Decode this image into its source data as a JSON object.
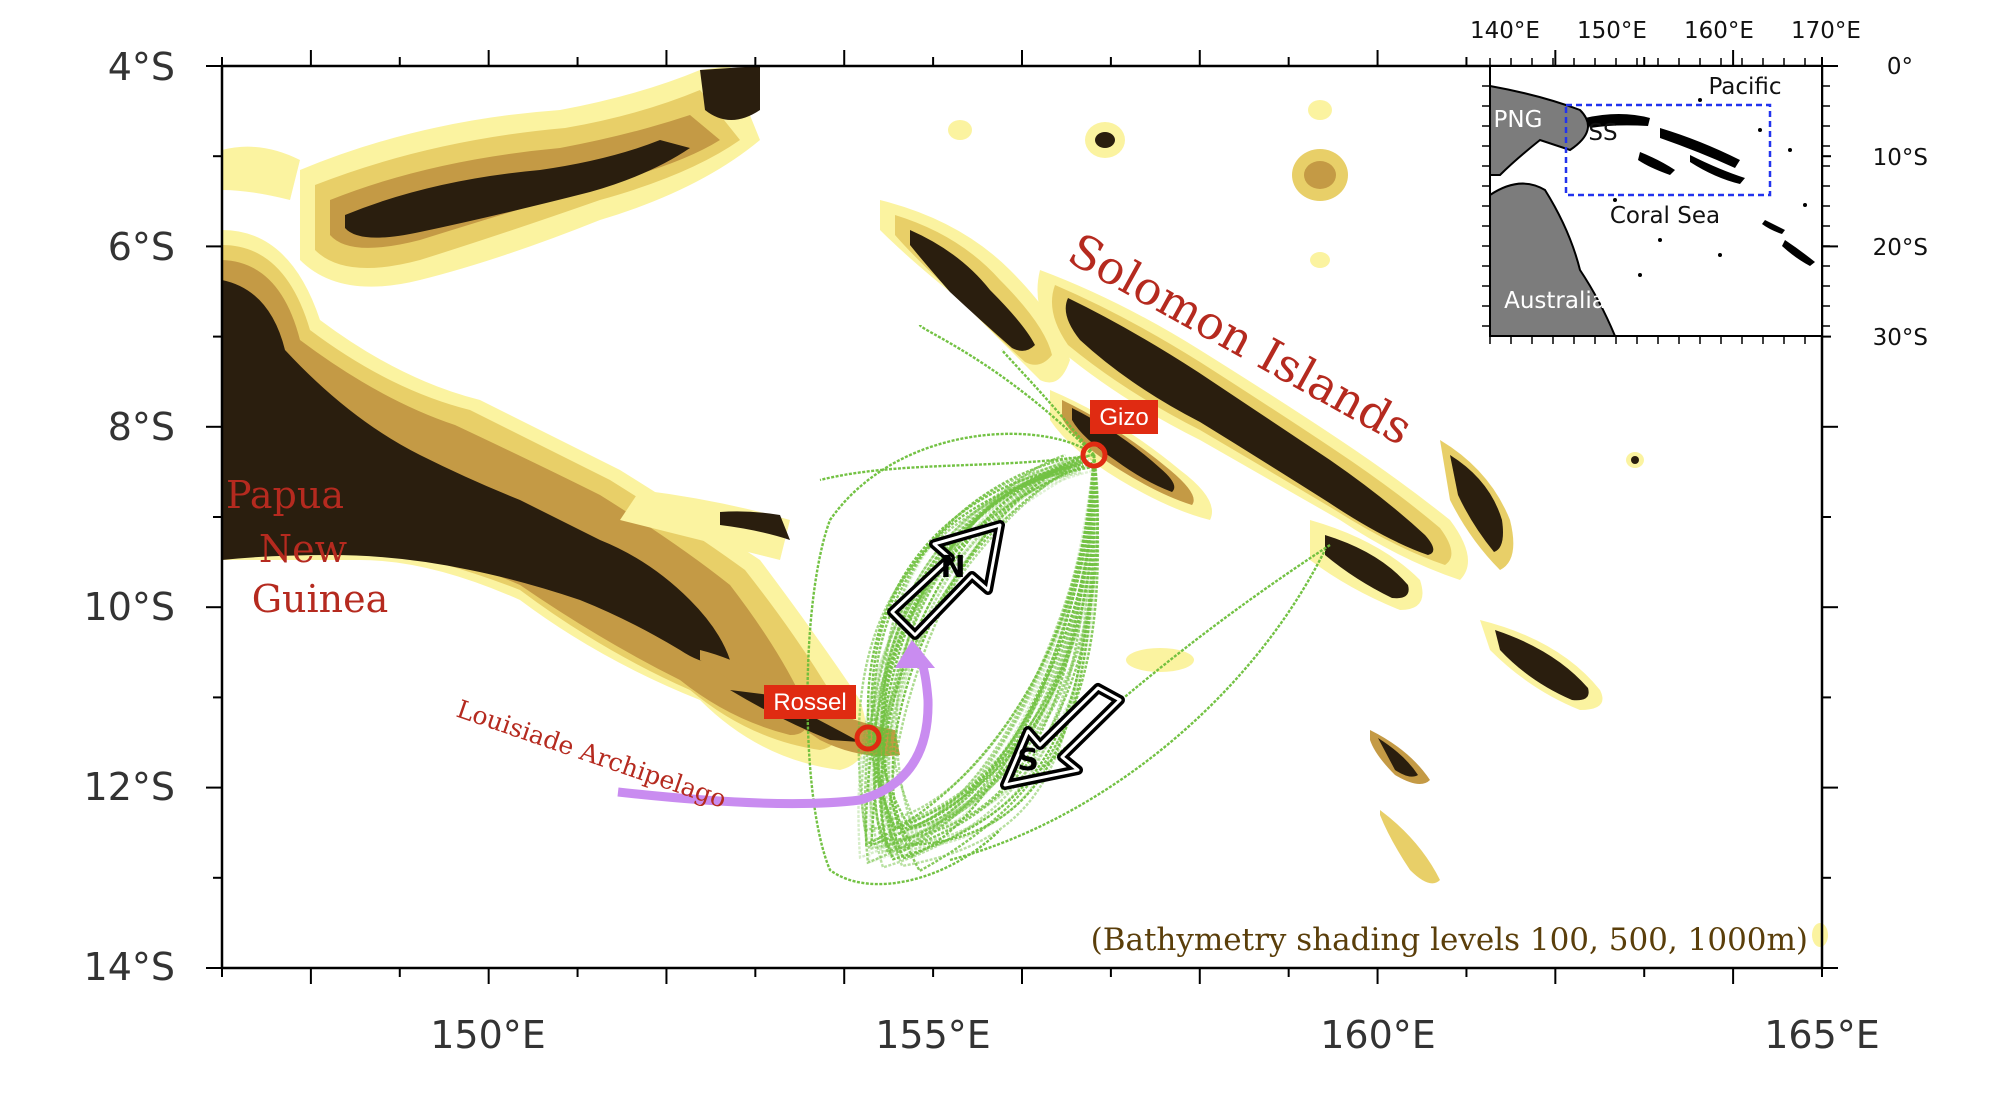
{
  "map": {
    "y_tick_labels": [
      "4°S",
      "6°S",
      "8°S",
      "10°S",
      "12°S",
      "14°S"
    ],
    "x_tick_labels": [
      "150°E",
      "155°E",
      "160°E",
      "165°E"
    ],
    "regions": {
      "solomon": "Solomon Islands",
      "png_line1": "Papua",
      "png_line2": "New",
      "png_line3": "Guinea",
      "louisiade": "Louisiade Archipelago"
    },
    "sites": {
      "gizo": "Gizo",
      "rossel": "Rossel"
    },
    "arrows": {
      "north": "N",
      "south": "S"
    },
    "caption": "(Bathymetry shading levels 100, 500, 1000m)",
    "colors": {
      "land": "#2a1e0e",
      "shelf_100": "#c49a45",
      "shelf_500": "#e8cf68",
      "shelf_1000": "#fbf3a0",
      "tracks": "#6cbf3a",
      "site_marker": "#e02b12",
      "current_arrow": "#c98cf0",
      "region_text": "#b52a1f"
    }
  },
  "inset": {
    "x_tick_labels": [
      "140°E",
      "150°E",
      "160°E",
      "170°E"
    ],
    "y_tick_labels": [
      "0°",
      "10°S",
      "20°S",
      "30°S"
    ],
    "labels": {
      "pacific": "Pacific",
      "png": "PNG",
      "ss": "SS",
      "coral_sea": "Coral Sea",
      "australia": "Australia"
    }
  }
}
